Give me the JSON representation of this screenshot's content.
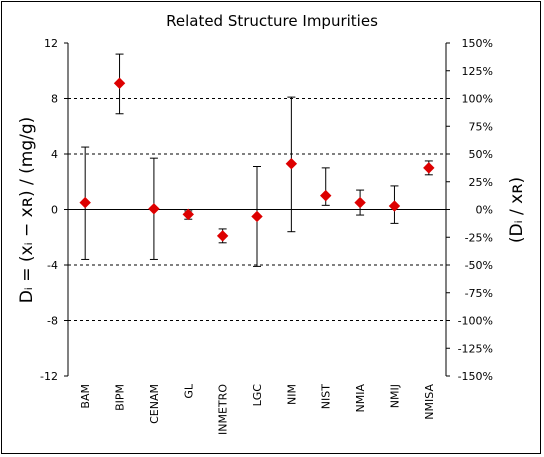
{
  "chart_data": {
    "type": "scatter",
    "title": "Related Structure Impurities",
    "ylabel_left": "Dᵢ = (xᵢ − xʀ) / (mg/g)",
    "ylabel_right": "(Dᵢ / xʀ)",
    "ylim": [
      -12,
      12
    ],
    "yticks_left": [
      "12",
      "8",
      "4",
      "0",
      "-4",
      "-8",
      "-12"
    ],
    "yticks_right": [
      "150%",
      "125%",
      "100%",
      "75%",
      "50%",
      "25%",
      "0%",
      "-25%",
      "-50%",
      "-75%",
      "-100%",
      "-125%",
      "-150%"
    ],
    "gridlines_dashed_at": [
      8,
      4,
      -4,
      -8
    ],
    "marker_color": "#dd0000",
    "categories": [
      "BAM",
      "BIPM",
      "CENAM",
      "GL",
      "INMETRO",
      "LGC",
      "NIM",
      "NIST",
      "NMIA",
      "NMIJ",
      "NMISA"
    ],
    "values": [
      0.5,
      9.1,
      0.05,
      -0.35,
      -1.9,
      -0.5,
      3.3,
      1.0,
      0.5,
      0.25,
      3.0
    ],
    "error_low": [
      -3.6,
      6.9,
      -3.6,
      -0.7,
      -2.4,
      -4.1,
      -1.6,
      0.3,
      -0.4,
      -1.0,
      2.5
    ],
    "error_high": [
      4.5,
      11.2,
      3.7,
      -0.1,
      -1.4,
      3.1,
      8.1,
      3.0,
      1.4,
      1.7,
      3.5
    ]
  }
}
